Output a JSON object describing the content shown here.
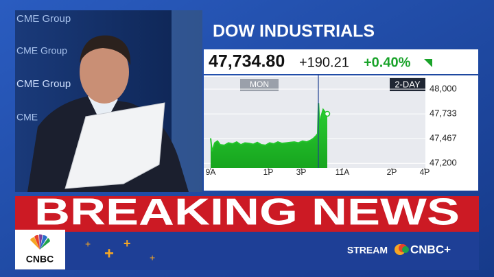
{
  "broadcast": {
    "signage": [
      "CME Group",
      "CME Group",
      "CME Group",
      "CME"
    ],
    "chart_title": "DOW INDUSTRIALS",
    "quote": {
      "price": "47,734.80",
      "change": "+190.21",
      "percent": "+0.40%"
    },
    "banner": "BREAKING NEWS",
    "network": "CNBC",
    "stream_label": "STREAM",
    "stream_brand": "CNBC+"
  },
  "chart_data": {
    "type": "area",
    "color": "#22c42a",
    "day_labels": [
      "MON",
      "2-DAY"
    ],
    "x": [
      0,
      5,
      15,
      25,
      35,
      50,
      65,
      80,
      95,
      110,
      125,
      140,
      155,
      170,
      185,
      200,
      215,
      230,
      245,
      260,
      275,
      290,
      305,
      320,
      335,
      350,
      365,
      375,
      385,
      390,
      393,
      398,
      402,
      410,
      420,
      425
    ],
    "values": [
      47470,
      47330,
      47420,
      47440,
      47400,
      47395,
      47420,
      47410,
      47430,
      47400,
      47420,
      47415,
      47405,
      47425,
      47400,
      47395,
      47420,
      47410,
      47430,
      47415,
      47420,
      47425,
      47430,
      47420,
      47440,
      47430,
      47450,
      47470,
      47500,
      47520,
      47850,
      47560,
      47700,
      47780,
      47740,
      47734
    ],
    "xlim": [
      0,
      780
    ],
    "ylim": [
      47150,
      48133
    ],
    "xticks": [
      {
        "value": 0,
        "label": "9A"
      },
      {
        "value": 210,
        "label": "1P"
      },
      {
        "value": 330,
        "label": "3P"
      },
      {
        "value": 480,
        "label": "11A"
      },
      {
        "value": 660,
        "label": "2P"
      },
      {
        "value": 780,
        "label": "4P"
      }
    ],
    "yticks": [
      {
        "value": 47200,
        "label": "47,200"
      },
      {
        "value": 47467,
        "label": "47,467"
      },
      {
        "value": 47733,
        "label": "47,733"
      },
      {
        "value": 48000,
        "label": "48,000"
      }
    ]
  }
}
